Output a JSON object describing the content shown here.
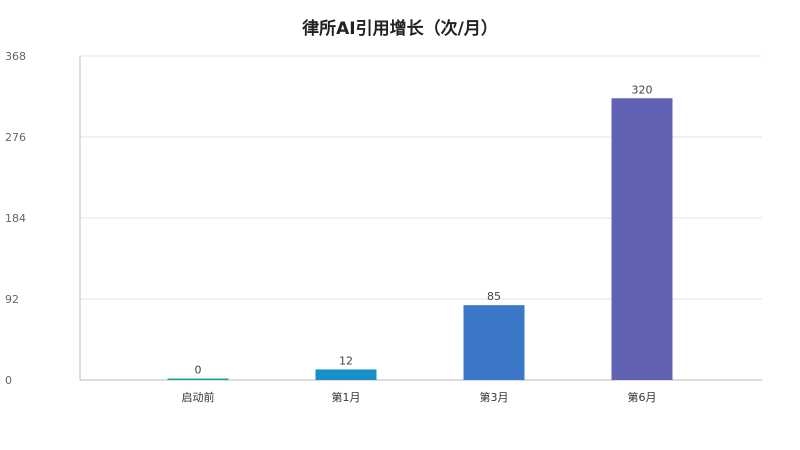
{
  "chart_data": {
    "type": "bar",
    "title": "律所AI引用增长（次/月）",
    "xlabel": "",
    "ylabel": "",
    "categories": [
      "启动前",
      "第1月",
      "第3月",
      "第6月"
    ],
    "values": [
      0,
      12,
      85,
      320
    ],
    "ylim": [
      0,
      368
    ],
    "yticks": [
      0,
      92,
      184,
      276,
      368
    ],
    "grid": true,
    "legend": "none",
    "colors": [
      "#1aa39a",
      "#1690c6",
      "#3b78c8",
      "#6262b4"
    ],
    "gridColor": "#e6e6e6",
    "axisColor": "#bbbbbb"
  }
}
